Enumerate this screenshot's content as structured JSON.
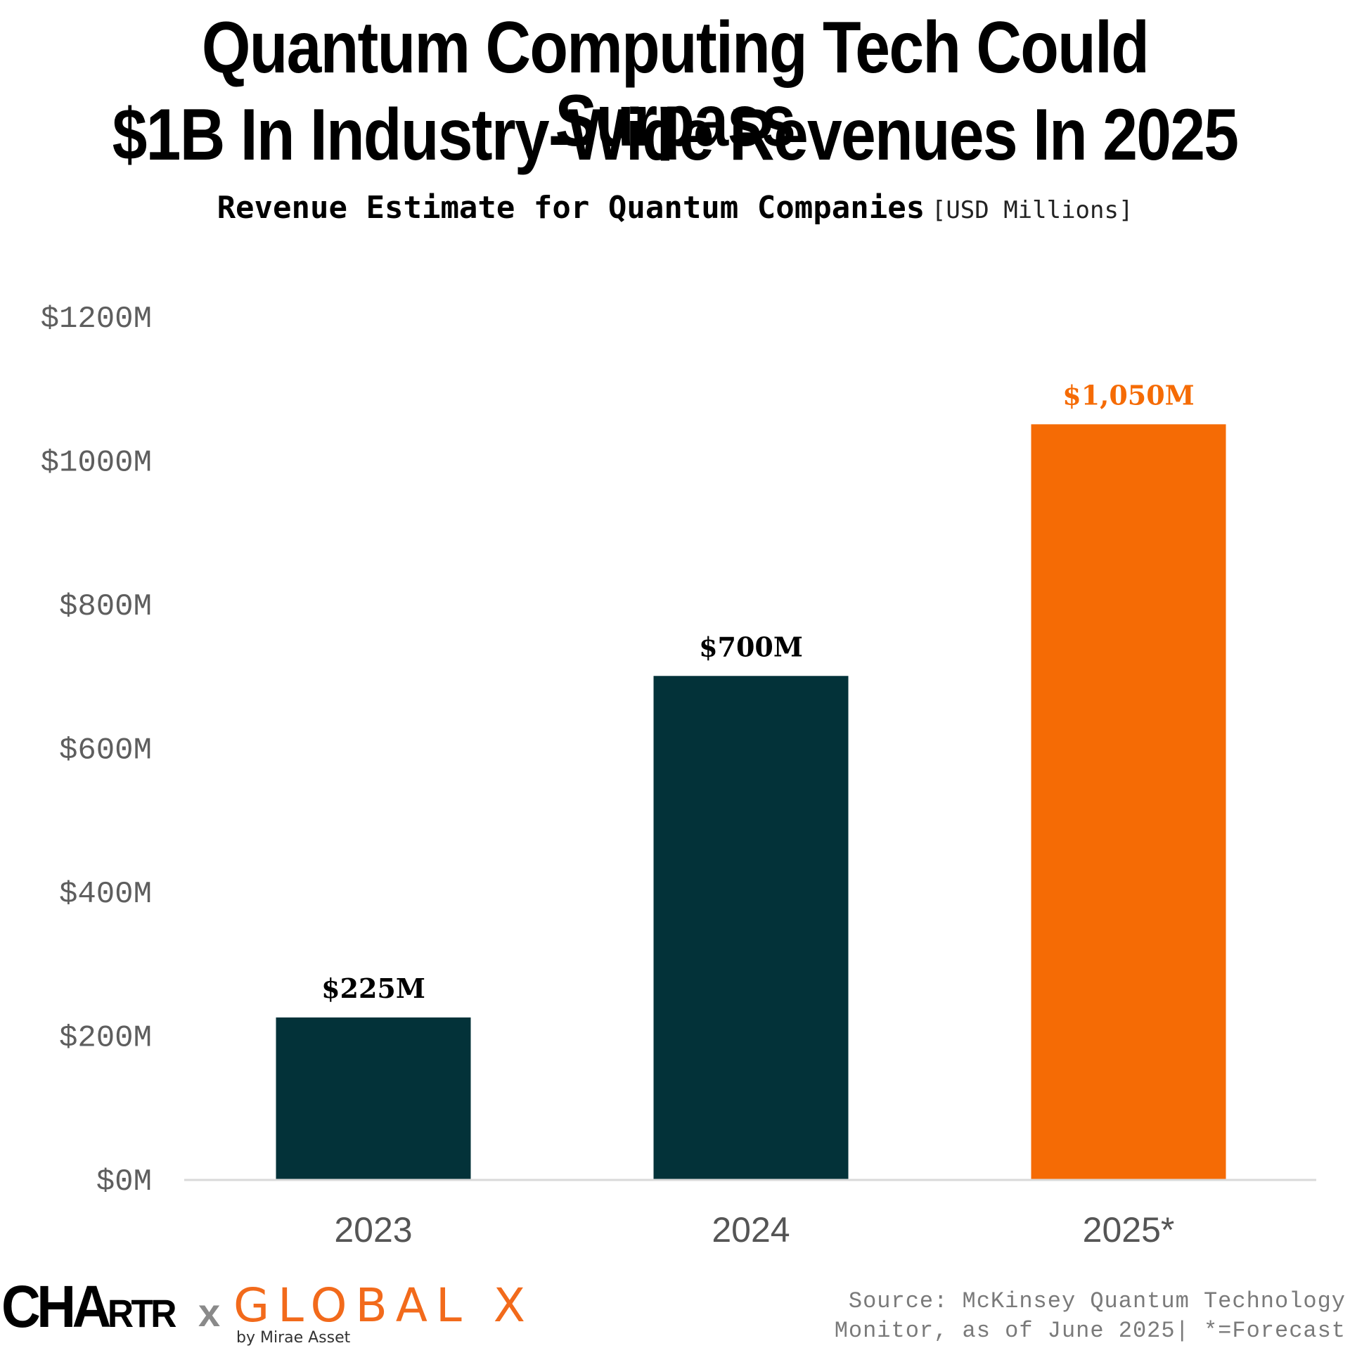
{
  "chart_data": {
    "type": "bar",
    "title": "Quantum Computing Tech Could Surpass $1B In Industry-Wide Revenues In 2025",
    "title_lines": [
      "Quantum Computing Tech Could Surpass",
      "$1B In Industry-Wide Revenues In 2025"
    ],
    "subtitle": "Revenue Estimate for Quantum Companies",
    "subtitle_unit": "[USD Millions]",
    "categories": [
      "2023",
      "2024",
      "2025*"
    ],
    "values": [
      225,
      700,
      1050
    ],
    "value_labels": [
      "$225M",
      "$700M",
      "$1,050M"
    ],
    "bar_colors": [
      "#033239",
      "#033239",
      "#f56b05"
    ],
    "label_colors": [
      "#000000",
      "#000000",
      "#f56b05"
    ],
    "xlabel": "",
    "ylabel": "",
    "ylim": [
      0,
      1200
    ],
    "yticks": [
      0,
      200,
      400,
      600,
      800,
      1000,
      1200
    ],
    "ytick_labels": [
      "$0M",
      "$200M",
      "$400M",
      "$600M",
      "$800M",
      "$1000M",
      "$1200M"
    ],
    "grid": false,
    "legend": "none"
  },
  "footer": {
    "brand_left": "CHARTR",
    "brand_sep": "x",
    "brand_right": "GLOBAL X",
    "brand_right_sub": "by Mirae Asset",
    "source_line1": "Source: McKinsey Quantum Technology",
    "source_line2": "Monitor, as of June 2025| *=Forecast"
  },
  "colors": {
    "primary_bar": "#033239",
    "highlight_bar": "#f56b05",
    "axis_text": "#5e5e5e",
    "baseline": "#d9d9d9"
  }
}
